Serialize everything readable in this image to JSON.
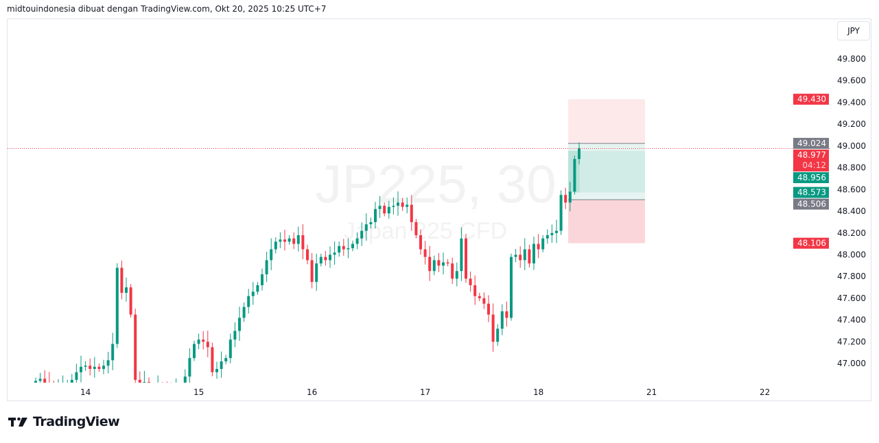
{
  "header": {
    "attribution": "midtouindonesia dibuat dengan TradingView.com, Okt 20, 2025 10:25 UTC+7"
  },
  "currency_button": "JPY",
  "brand": {
    "name": "TradingView"
  },
  "chart_data": {
    "type": "candlestick",
    "symbol": "JP225, 30",
    "description": "Japan 225 CFD",
    "ylim": [
      46.8,
      50.0
    ],
    "y_ticks": [
      "47.000",
      "47.200",
      "47.400",
      "47.600",
      "47.800",
      "48.000",
      "48.200",
      "48.400",
      "48.600",
      "48.800",
      "49.000",
      "49.200",
      "49.400",
      "49.600",
      "49.800"
    ],
    "x_ticks": [
      {
        "label": "14",
        "bar": 11
      },
      {
        "label": "15",
        "bar": 36
      },
      {
        "label": "16",
        "bar": 61
      },
      {
        "label": "17",
        "bar": 86
      },
      {
        "label": "18",
        "bar": 111
      },
      {
        "label": "21",
        "bar": 136
      },
      {
        "label": "22",
        "bar": 161
      }
    ],
    "closes": [
      46.84,
      46.86,
      46.82,
      46.8,
      46.78,
      46.79,
      46.8,
      46.82,
      46.85,
      46.92,
      46.97,
      46.98,
      46.95,
      46.97,
      46.95,
      46.98,
      47.03,
      47.18,
      47.88,
      47.65,
      47.7,
      47.45,
      46.85,
      46.8,
      46.83,
      46.75,
      46.72,
      46.8,
      46.78,
      46.75,
      46.74,
      46.76,
      46.78,
      46.88,
      47.05,
      47.18,
      47.22,
      47.2,
      47.15,
      46.92,
      46.95,
      47.02,
      47.05,
      47.22,
      47.3,
      47.42,
      47.52,
      47.62,
      47.66,
      47.72,
      47.82,
      47.95,
      48.05,
      48.12,
      48.14,
      48.12,
      48.15,
      48.1,
      48.18,
      48.05,
      47.95,
      47.75,
      47.92,
      47.98,
      47.95,
      48.0,
      48.02,
      48.08,
      48.05,
      48.06,
      48.1,
      48.15,
      48.22,
      48.28,
      48.3,
      48.42,
      48.45,
      48.38,
      48.44,
      48.45,
      48.48,
      48.44,
      48.46,
      48.3,
      48.18,
      48.05,
      47.98,
      47.85,
      47.95,
      47.9,
      47.93,
      47.92,
      47.78,
      47.85,
      48.15,
      47.78,
      47.72,
      47.62,
      47.6,
      47.55,
      47.45,
      47.2,
      47.32,
      47.48,
      47.42,
      47.98,
      48.0,
      47.95,
      48.05,
      47.92,
      48.1,
      48.05,
      48.15,
      48.18,
      48.2,
      48.22,
      48.55,
      48.48,
      48.58,
      48.88,
      48.98
    ],
    "last_price": {
      "value": "48.977",
      "countdown": "04:12"
    },
    "positions": {
      "short_stop": "49.430",
      "entry_upper": "49.024",
      "target_upper": "48.956",
      "target_lower": "48.573",
      "entry_lower": "48.506",
      "long_stop": "48.106"
    },
    "colors": {
      "up": "#089981",
      "down": "#f23645",
      "label_gray": "#787b86",
      "stop_zone": "#fde9ea",
      "stop_zone_low": "#fad6da",
      "profit_zone": "#e6f4f1",
      "profit_zone_inner": "#d1ece6"
    }
  }
}
